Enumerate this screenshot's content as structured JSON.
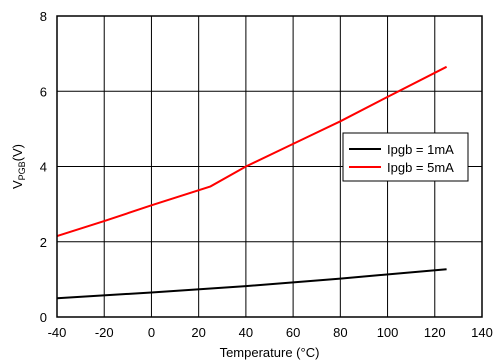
{
  "chart_data": {
    "type": "line",
    "xlabel": "Temperature (°C)",
    "ylabel_main": "V",
    "ylabel_sub": "PGB",
    "ylabel_unit": "(V)",
    "xlim": [
      -40,
      140
    ],
    "ylim": [
      0,
      8
    ],
    "xticks": [
      -40,
      -20,
      0,
      20,
      40,
      60,
      80,
      100,
      120,
      140
    ],
    "yticks": [
      0,
      2,
      4,
      6,
      8
    ],
    "grid": true,
    "legend_position": "center-right",
    "series": [
      {
        "name": "Ipgb = 1mA",
        "color": "#000000",
        "x": [
          -40,
          0,
          40,
          80,
          125
        ],
        "y": [
          0.5,
          0.65,
          0.82,
          1.02,
          1.27
        ]
      },
      {
        "name": "Ipgb = 5mA",
        "color": "#ff0000",
        "x": [
          -40,
          -20,
          0,
          25,
          40,
          60,
          80,
          100,
          125
        ],
        "y": [
          2.15,
          2.55,
          2.97,
          3.47,
          4.0,
          4.6,
          5.2,
          5.85,
          6.65
        ]
      }
    ]
  }
}
